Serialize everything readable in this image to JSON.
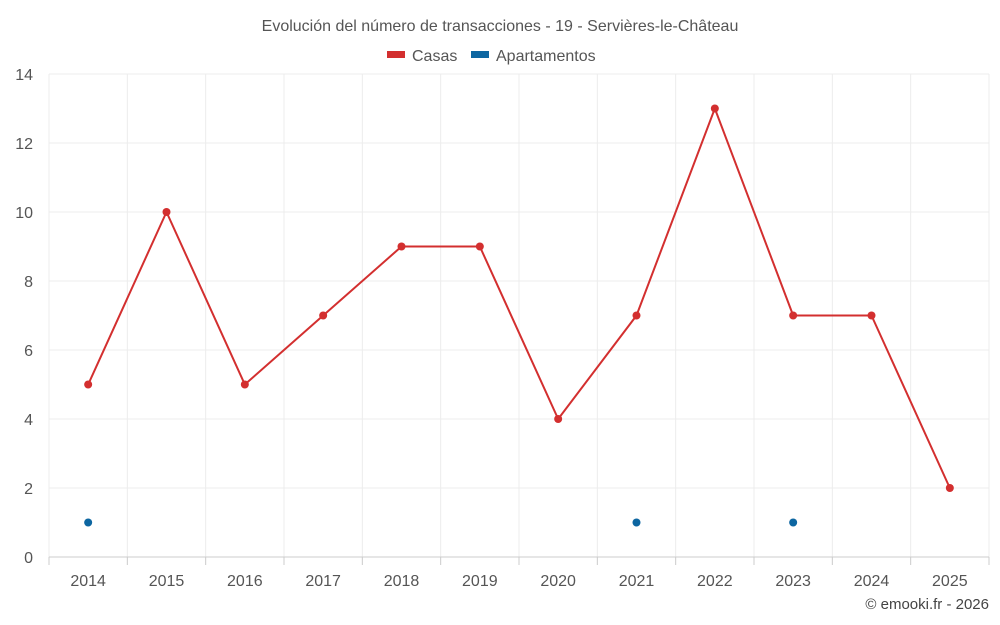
{
  "chart_data": {
    "type": "line",
    "title": "Evolución del número de transacciones - 19 - Servières-le-Château",
    "categories": [
      "2014",
      "2015",
      "2016",
      "2017",
      "2018",
      "2019",
      "2020",
      "2021",
      "2022",
      "2023",
      "2024",
      "2025"
    ],
    "series": [
      {
        "name": "Casas",
        "color": "#d32f2f",
        "values": [
          5,
          10,
          5,
          7,
          9,
          9,
          4,
          7,
          13,
          7,
          7,
          2
        ]
      },
      {
        "name": "Apartamentos",
        "color": "#0d66a1",
        "values": [
          1,
          null,
          null,
          null,
          null,
          null,
          null,
          1,
          null,
          1,
          null,
          null
        ]
      }
    ],
    "ylim": [
      0,
      14
    ],
    "yticks": [
      0,
      2,
      4,
      6,
      8,
      10,
      12,
      14
    ],
    "grid": true,
    "legend_position": "top-center",
    "xlabel": "",
    "ylabel": ""
  },
  "credit": "© emooki.fr - 2026"
}
